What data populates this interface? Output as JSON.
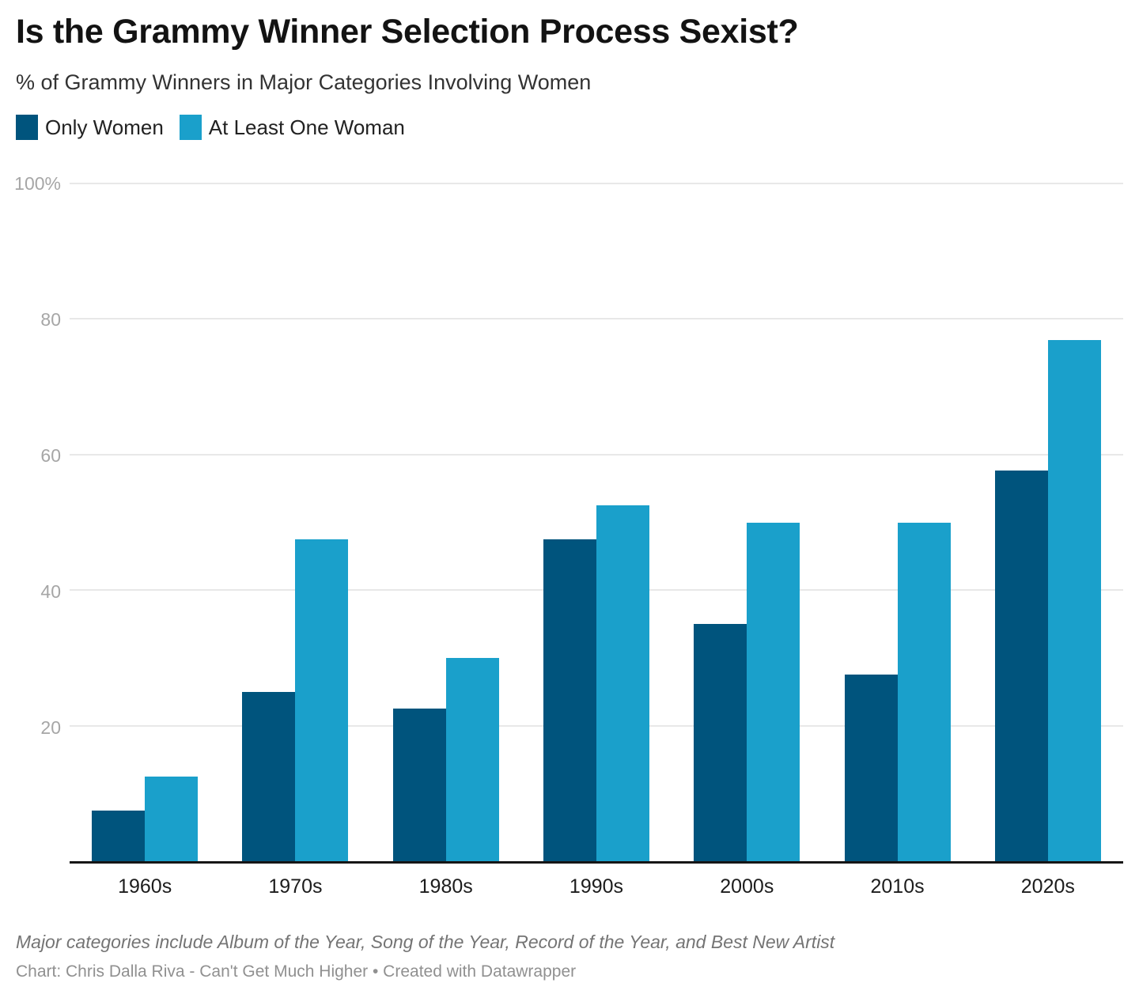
{
  "header": {
    "title": "Is the Grammy Winner Selection Process Sexist?",
    "subtitle": "% of Grammy Winners in Major Categories Involving Women"
  },
  "chart_data": {
    "type": "bar",
    "title": "Is the Grammy Winner Selection Process Sexist?",
    "subtitle": "% of Grammy Winners in Major Categories Involving Women",
    "categories": [
      "1960s",
      "1970s",
      "1980s",
      "1990s",
      "2000s",
      "2010s",
      "2020s"
    ],
    "series": [
      {
        "name": "Only Women",
        "color": "#00547D",
        "values": [
          7.5,
          25,
          22.5,
          47.5,
          35,
          27.5,
          57.7
        ]
      },
      {
        "name": "At Least One Woman",
        "color": "#1AA0CB",
        "values": [
          12.5,
          47.5,
          30,
          52.5,
          50,
          50,
          76.9
        ]
      }
    ],
    "ylabel": "",
    "xlabel": "",
    "ylim": [
      0,
      100
    ],
    "yticks": [
      {
        "label": "100%",
        "value": 100
      },
      {
        "label": "80",
        "value": 80
      },
      {
        "label": "60",
        "value": 60
      },
      {
        "label": "40",
        "value": 40
      },
      {
        "label": "20",
        "value": 20
      }
    ],
    "grid": true,
    "legend_position": "top-left"
  },
  "footer": {
    "note": "Major categories include Album of the Year, Song of the Year, Record of the Year, and Best New Artist",
    "credit": "Chart: Chris Dalla Riva - Can't Get Much Higher • Created with Datawrapper"
  }
}
